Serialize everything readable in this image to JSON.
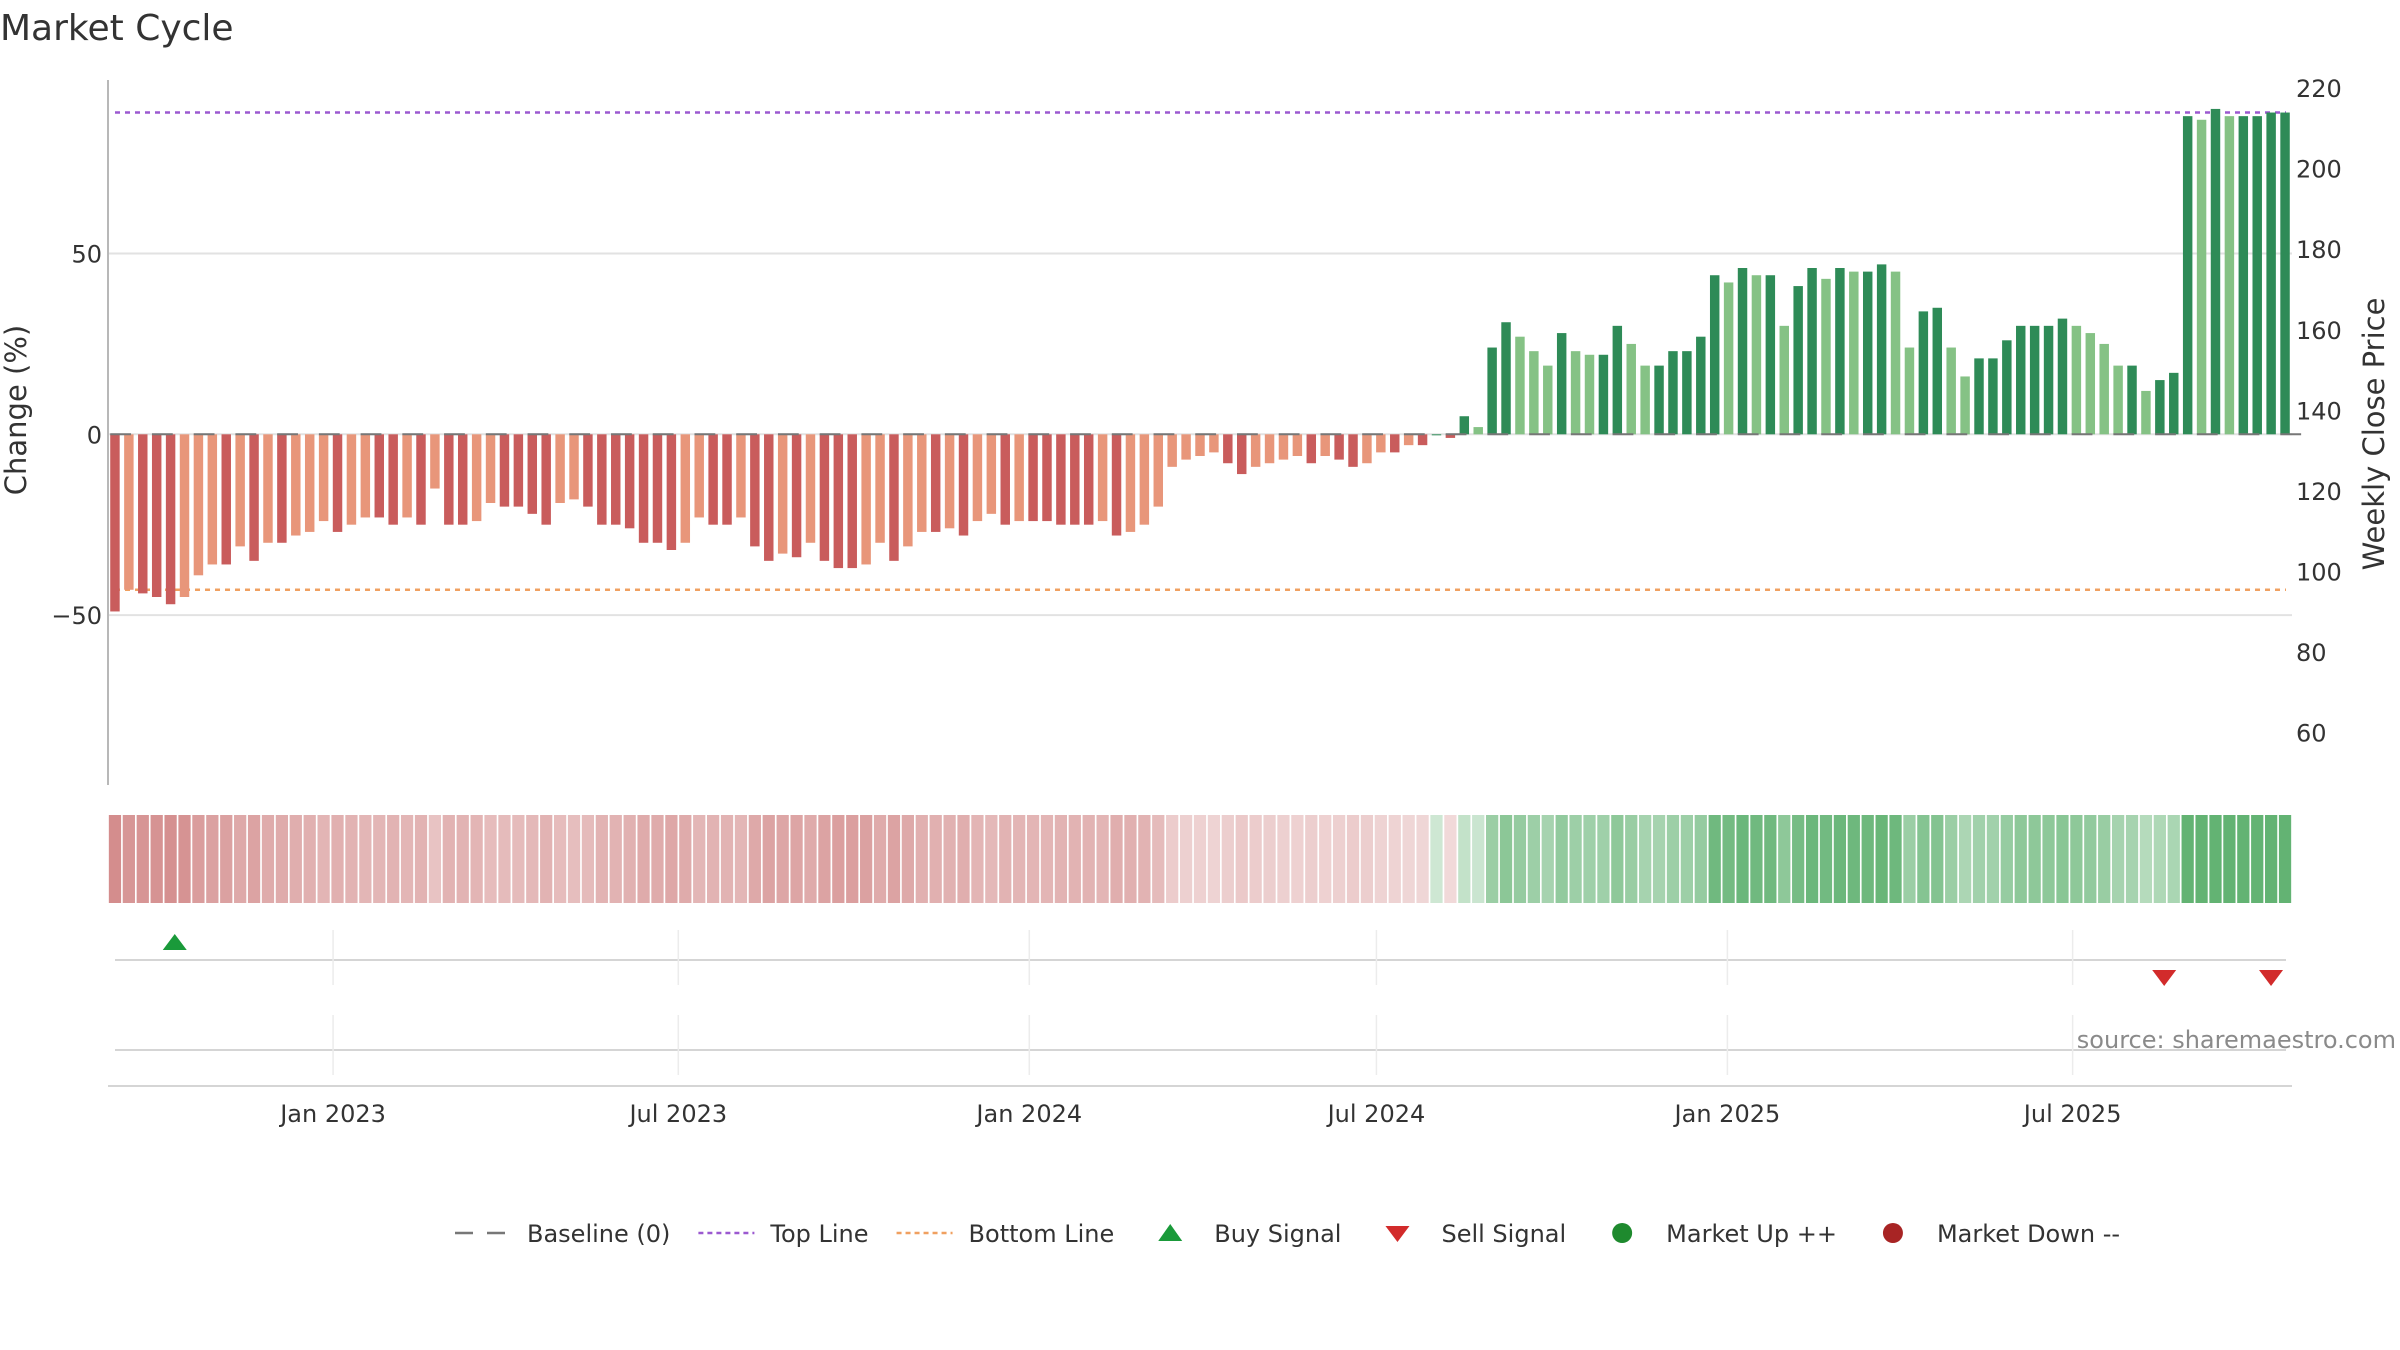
{
  "title": "Market Cycle",
  "source": "source: sharemaestro.com",
  "chart_data": {
    "type": "bar",
    "title": "Market Cycle",
    "ylabel": "Change (%)",
    "y2label": "Weekly Close Price",
    "ylim": [
      -97,
      98
    ],
    "y2lim": [
      47,
      222
    ],
    "yticks": [
      {
        "value": 50,
        "label": "50"
      },
      {
        "value": 0,
        "label": "0"
      },
      {
        "value": -50,
        "label": "−50"
      }
    ],
    "y2ticks": [
      {
        "value": 220,
        "label": "220"
      },
      {
        "value": 200,
        "label": "200"
      },
      {
        "value": 180,
        "label": "180"
      },
      {
        "value": 160,
        "label": "160"
      },
      {
        "value": 140,
        "label": "140"
      },
      {
        "value": 120,
        "label": "120"
      },
      {
        "value": 100,
        "label": "100"
      },
      {
        "value": 80,
        "label": "80"
      },
      {
        "value": 60,
        "label": "60"
      }
    ],
    "x_start": "2022-09-05",
    "x_end": "2025-10-24",
    "xticks": [
      {
        "date": "2023-01-01",
        "label": "Jan 2023"
      },
      {
        "date": "2023-07-01",
        "label": "Jul 2023"
      },
      {
        "date": "2024-01-01",
        "label": "Jan 2024"
      },
      {
        "date": "2024-07-01",
        "label": "Jul 2024"
      },
      {
        "date": "2025-01-01",
        "label": "Jan 2025"
      },
      {
        "date": "2025-07-01",
        "label": "Jul 2025"
      }
    ],
    "top_line": 89,
    "bottom_line": -43,
    "week_start": "2022-09-05",
    "values": [
      -49,
      -43,
      -44,
      -45,
      -47,
      -45,
      -39,
      -36,
      -36,
      -31,
      -35,
      -30,
      -30,
      -28,
      -27,
      -24,
      -27,
      -25,
      -23,
      -23,
      -25,
      -23,
      -25,
      -15,
      -25,
      -25,
      -24,
      -19,
      -20,
      -20,
      -22,
      -25,
      -19,
      -18,
      -20,
      -25,
      -25,
      -26,
      -30,
      -30,
      -32,
      -30,
      -23,
      -25,
      -25,
      -23,
      -31,
      -35,
      -33,
      -34,
      -30,
      -35,
      -37,
      -37,
      -36,
      -30,
      -35,
      -31,
      -27,
      -27,
      -26,
      -28,
      -24,
      -22,
      -25,
      -24,
      -24,
      -24,
      -25,
      -25,
      -25,
      -24,
      -28,
      -27,
      -25,
      -20,
      -9,
      -7,
      -6,
      -5,
      -8,
      -11,
      -9,
      -8,
      -7,
      -6,
      -8,
      -6,
      -7,
      -9,
      -8,
      -5,
      -5,
      -3,
      -3,
      0,
      -1,
      5,
      2,
      24,
      31,
      27,
      23,
      19,
      28,
      23,
      22,
      22,
      30,
      25,
      19,
      19,
      23,
      23,
      27,
      44,
      42,
      46,
      44,
      44,
      30,
      41,
      46,
      43,
      46,
      45,
      45,
      47,
      45,
      24,
      34,
      35,
      24,
      16,
      21,
      21,
      26,
      30,
      30,
      30,
      32,
      30,
      28,
      25,
      19,
      19,
      12,
      15,
      17,
      88,
      87,
      90,
      88,
      88,
      88,
      89,
      89
    ],
    "series": [
      {
        "name": "Baseline (0)",
        "style": "dash",
        "color": "#777777"
      },
      {
        "name": "Top Line",
        "style": "dotted",
        "color": "#9b59d0"
      },
      {
        "name": "Bottom Line",
        "style": "dotted",
        "color": "#f0a060"
      },
      {
        "name": "Buy Signal",
        "marker": "triangle-up",
        "color": "#1a9a3a",
        "dates": [
          "2022-10-10"
        ]
      },
      {
        "name": "Sell Signal",
        "marker": "triangle-down",
        "color": "#d22b2b",
        "dates": [
          "2025-08-18",
          "2025-10-13"
        ]
      },
      {
        "name": "Market Up ++",
        "marker": "circle",
        "color": "#1e8a2e"
      },
      {
        "name": "Market Down --",
        "marker": "circle",
        "color": "#a82424"
      }
    ],
    "legend_position": "bottom",
    "colors": {
      "neg_dark": "#c95c5c",
      "neg_light": "#e8967a",
      "pos_dark": "#2e8b57",
      "pos_light": "#85c285",
      "grid": "#e2e2e2",
      "axis": "#b8b8b8"
    }
  }
}
